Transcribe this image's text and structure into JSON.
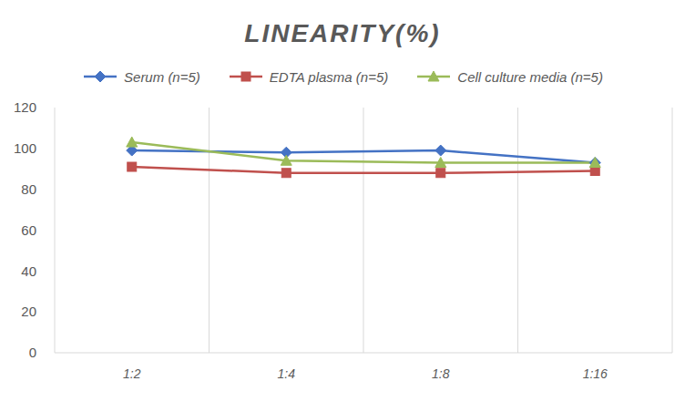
{
  "chart_data": {
    "type": "line",
    "title": "LINEARITY(%)",
    "categories": [
      "1:2",
      "1:4",
      "1:8",
      "1:16"
    ],
    "series": [
      {
        "name": "Serum (n=5)",
        "color": "#4472c4",
        "marker": "diamond",
        "values": [
          99,
          98,
          99,
          93
        ]
      },
      {
        "name": "EDTA plasma (n=5)",
        "color": "#c0504d",
        "marker": "square",
        "values": [
          91,
          88,
          88,
          89
        ]
      },
      {
        "name": "Cell culture media (n=5)",
        "color": "#9bbb59",
        "marker": "triangle",
        "values": [
          103,
          94,
          93,
          93
        ]
      }
    ],
    "ylim": [
      0,
      120
    ],
    "yticks": [
      0,
      20,
      40,
      60,
      80,
      100,
      120
    ],
    "grid": true,
    "legend": "top"
  }
}
